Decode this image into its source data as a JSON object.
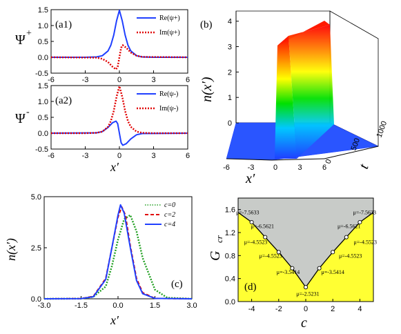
{
  "chart_data": [
    {
      "id": "a1",
      "type": "line",
      "panel_label": "(a1)",
      "ylabel": "Ψ",
      "ylabel_sub": "+",
      "xlabel": "",
      "xlim": [
        -6,
        6
      ],
      "ylim": [
        -0.5,
        1.5
      ],
      "xticks": [
        "-6",
        "-3",
        "0",
        "3",
        "6"
      ],
      "yticks": [
        "-0.5",
        "0.0",
        "0.5",
        "1.0",
        "1.5"
      ],
      "legend_position": "top-right",
      "series": [
        {
          "name": "Re(ψ+)",
          "color": "#1f3fff",
          "style": "solid",
          "x": [
            -6,
            -3,
            -2,
            -1.5,
            -1,
            -0.75,
            -0.5,
            -0.25,
            0,
            0.25,
            0.5,
            0.75,
            1,
            1.5,
            2,
            3,
            6
          ],
          "y": [
            0,
            0,
            0.01,
            0.05,
            0.2,
            0.38,
            0.7,
            1.15,
            1.48,
            1.15,
            0.7,
            0.38,
            0.2,
            0.05,
            0.01,
            0,
            0
          ]
        },
        {
          "name": "Im(ψ+)",
          "color": "#e00000",
          "style": "dotted",
          "x": [
            -6,
            -2,
            -1.5,
            -1,
            -0.6,
            -0.3,
            -0.15,
            0,
            0.15,
            0.3,
            0.6,
            1,
            1.5,
            2,
            6
          ],
          "y": [
            0,
            -0.01,
            -0.05,
            -0.15,
            -0.3,
            -0.38,
            -0.3,
            0,
            0.3,
            0.38,
            0.3,
            0.15,
            0.05,
            0.01,
            0
          ]
        }
      ]
    },
    {
      "id": "a2",
      "type": "line",
      "panel_label": "(a2)",
      "ylabel": "Ψ",
      "ylabel_sub": "-",
      "xlabel": "x′",
      "xlim": [
        -6,
        6
      ],
      "ylim": [
        -0.5,
        1.5
      ],
      "xticks": [
        "-6",
        "-3",
        "0",
        "3",
        "6"
      ],
      "yticks": [
        "-0.5",
        "0.0",
        "0.5",
        "1.0",
        "1.5"
      ],
      "legend_position": "top-right",
      "series": [
        {
          "name": "Re(ψ-)",
          "color": "#1f3fff",
          "style": "solid",
          "x": [
            -6,
            -2,
            -1.5,
            -1,
            -0.6,
            -0.3,
            -0.15,
            0,
            0.15,
            0.3,
            0.6,
            1,
            1.5,
            2,
            6
          ],
          "y": [
            0,
            0.01,
            0.05,
            0.18,
            0.33,
            0.38,
            0.3,
            0,
            -0.3,
            -0.38,
            -0.33,
            -0.18,
            -0.05,
            -0.01,
            0
          ]
        },
        {
          "name": "Im(ψ-)",
          "color": "#e00000",
          "style": "dotted",
          "x": [
            -6,
            -3,
            -2,
            -1.5,
            -1,
            -0.75,
            -0.5,
            -0.25,
            0,
            0.25,
            0.5,
            0.75,
            1,
            1.5,
            2,
            3,
            6
          ],
          "y": [
            0,
            0,
            0.01,
            0.05,
            0.2,
            0.38,
            0.7,
            1.15,
            1.48,
            1.15,
            0.7,
            0.38,
            0.2,
            0.05,
            0.01,
            0,
            0
          ]
        }
      ]
    },
    {
      "id": "b",
      "type": "area",
      "panel_label": "(b)",
      "ylabel": "n(x′)",
      "xlabel": "x′",
      "tlabel": "t",
      "zticks": [
        "0",
        "1",
        "2",
        "3",
        "4"
      ],
      "xticks": [
        "-6",
        "-3",
        "0",
        "3",
        "6"
      ],
      "tticks": [
        "0",
        "500",
        "1000"
      ],
      "xlim": [
        -6,
        6
      ],
      "tlim": [
        0,
        1000
      ],
      "zlim": [
        0,
        4
      ],
      "peak": 3.7
    },
    {
      "id": "c",
      "type": "line",
      "panel_label": "(c)",
      "ylabel": "n(x′)",
      "xlabel": "x′",
      "xlim": [
        -3,
        3
      ],
      "ylim": [
        0,
        5
      ],
      "xticks": [
        "-3.0",
        "-1.5",
        "0.0",
        "1.5",
        "3.0"
      ],
      "yticks": [
        "0.0",
        "2.5",
        "5.0"
      ],
      "legend_position": "top-right",
      "series": [
        {
          "name": "c=0",
          "color": "#22a022",
          "style": "dotted",
          "x": [
            -3,
            -1.5,
            -1,
            -0.5,
            -0.25,
            0,
            0.25,
            0.5,
            0.75,
            1,
            1.5,
            2,
            3
          ],
          "y": [
            0,
            0.01,
            0.1,
            0.6,
            1.6,
            2.9,
            3.9,
            4.1,
            3.3,
            2.0,
            0.45,
            0.05,
            0
          ]
        },
        {
          "name": "c=2",
          "color": "#e00000",
          "style": "dashed",
          "x": [
            -3,
            -1.5,
            -1,
            -0.5,
            -0.25,
            0,
            0.15,
            0.3,
            0.5,
            0.75,
            1,
            1.5,
            3
          ],
          "y": [
            0,
            0.01,
            0.12,
            1.0,
            2.5,
            4.0,
            4.5,
            4.1,
            2.6,
            1.0,
            0.3,
            0.02,
            0
          ]
        },
        {
          "name": "c=4",
          "color": "#1f3fff",
          "style": "solid",
          "x": [
            -3,
            -1.5,
            -1,
            -0.5,
            -0.25,
            0,
            0.1,
            0.25,
            0.5,
            0.75,
            1,
            1.5,
            3
          ],
          "y": [
            0,
            0.01,
            0.1,
            0.95,
            2.5,
            4.1,
            4.6,
            4.2,
            2.5,
            0.9,
            0.25,
            0.02,
            0
          ]
        }
      ]
    },
    {
      "id": "d",
      "type": "line",
      "panel_label": "(d)",
      "ylabel": "G",
      "ylabel_sub": "cr",
      "xlabel": "c",
      "xlim": [
        -5,
        5
      ],
      "ylim": [
        0,
        1.8
      ],
      "xticks": [
        "-4",
        "-2",
        "0",
        "2",
        "4"
      ],
      "yticks": [
        "0.0",
        "0.4",
        "0.8",
        "1.2",
        "1.6"
      ],
      "upper_color": "#c8cbc8",
      "lower_color": "#ffff33",
      "series": [
        {
          "name": "",
          "color": "#000000",
          "x": [
            -5,
            -4,
            -3,
            -2,
            -1,
            0,
            1,
            2,
            3,
            4,
            5
          ],
          "y": [
            1.55,
            1.38,
            1.12,
            0.86,
            0.58,
            0.25,
            0.58,
            0.86,
            1.12,
            1.38,
            1.55
          ]
        }
      ],
      "markers_x": [
        -4,
        -3,
        -2,
        -1,
        0,
        1,
        2,
        3,
        4
      ],
      "annotations": [
        {
          "text": "μ=-7.5633",
          "x": -4.3,
          "y": 1.52
        },
        {
          "text": "μ=-6.5621",
          "x": -3.2,
          "y": 1.28
        },
        {
          "text": "μ=-4.5523",
          "x": -3.7,
          "y": 1.0
        },
        {
          "text": "μ=-4.5523",
          "x": -2.6,
          "y": 0.76
        },
        {
          "text": "μ=-3.5414",
          "x": -1.3,
          "y": 0.48
        },
        {
          "text": "μ=-2.5231",
          "x": 0.15,
          "y": 0.1
        },
        {
          "text": "μ=-3.5414",
          "x": 2.0,
          "y": 0.48
        },
        {
          "text": "μ=-4.5523",
          "x": 3.3,
          "y": 0.76
        },
        {
          "text": "μ=-4.5523",
          "x": 4.4,
          "y": 1.0
        },
        {
          "text": "μ=-6.5621",
          "x": 3.2,
          "y": 1.28
        },
        {
          "text": "μ=-7.5633",
          "x": 4.35,
          "y": 1.52
        }
      ]
    }
  ]
}
